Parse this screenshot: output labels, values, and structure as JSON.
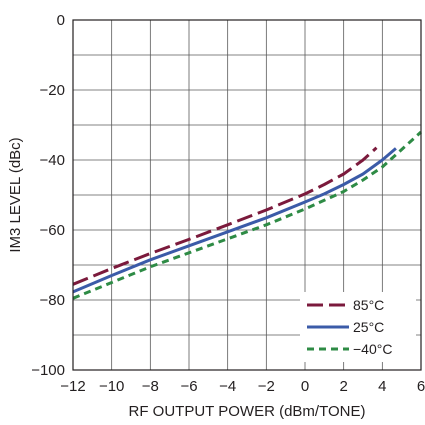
{
  "chart_data": {
    "type": "line",
    "xlabel": "RF OUTPUT POWER (dBm/TONE)",
    "ylabel": "IM3 LEVEL (dBc)",
    "xlim": [
      -12,
      6
    ],
    "ylim": [
      -100,
      0
    ],
    "x_ticks": [
      -12,
      -10,
      -8,
      -6,
      -4,
      -2,
      0,
      2,
      4,
      6
    ],
    "y_ticks": [
      0,
      -20,
      -40,
      -60,
      -80,
      -100
    ],
    "x_tick_labels": [
      "−12",
      "−10",
      "−8",
      "−6",
      "−4",
      "−2",
      "0",
      "2",
      "4",
      "6"
    ],
    "y_tick_labels": [
      "0",
      "−20",
      "−40",
      "−60",
      "−80",
      "−100"
    ],
    "grid": true,
    "legend_position": "bottom-right",
    "series": [
      {
        "name": "85°C",
        "color": "#7b1a3c",
        "dash": "long-dash",
        "x": [
          -12,
          -10,
          -8,
          -6,
          -4,
          -2,
          0,
          1,
          2,
          3,
          3.7
        ],
        "y": [
          -75.5,
          -71,
          -66.7,
          -62.7,
          -58.5,
          -54.3,
          -49.7,
          -47,
          -44,
          -40,
          -36.5
        ]
      },
      {
        "name": "25°C",
        "color": "#3b5ba8",
        "dash": "solid",
        "x": [
          -12,
          -10,
          -8,
          -6,
          -4,
          -2,
          0,
          1,
          2,
          3,
          4,
          4.7
        ],
        "y": [
          -77.7,
          -73,
          -68.5,
          -64.5,
          -60.5,
          -56.5,
          -52,
          -49.7,
          -47,
          -44,
          -40,
          -36.7
        ]
      },
      {
        "name": "−40°C",
        "color": "#2e8b45",
        "dash": "short-dash",
        "x": [
          -12,
          -10,
          -8,
          -6,
          -4,
          -2,
          0,
          2,
          3,
          4,
          5,
          6
        ],
        "y": [
          -79.5,
          -75,
          -70.5,
          -66.5,
          -62.5,
          -58.5,
          -54,
          -49,
          -45.7,
          -42,
          -37,
          -32
        ]
      }
    ]
  }
}
